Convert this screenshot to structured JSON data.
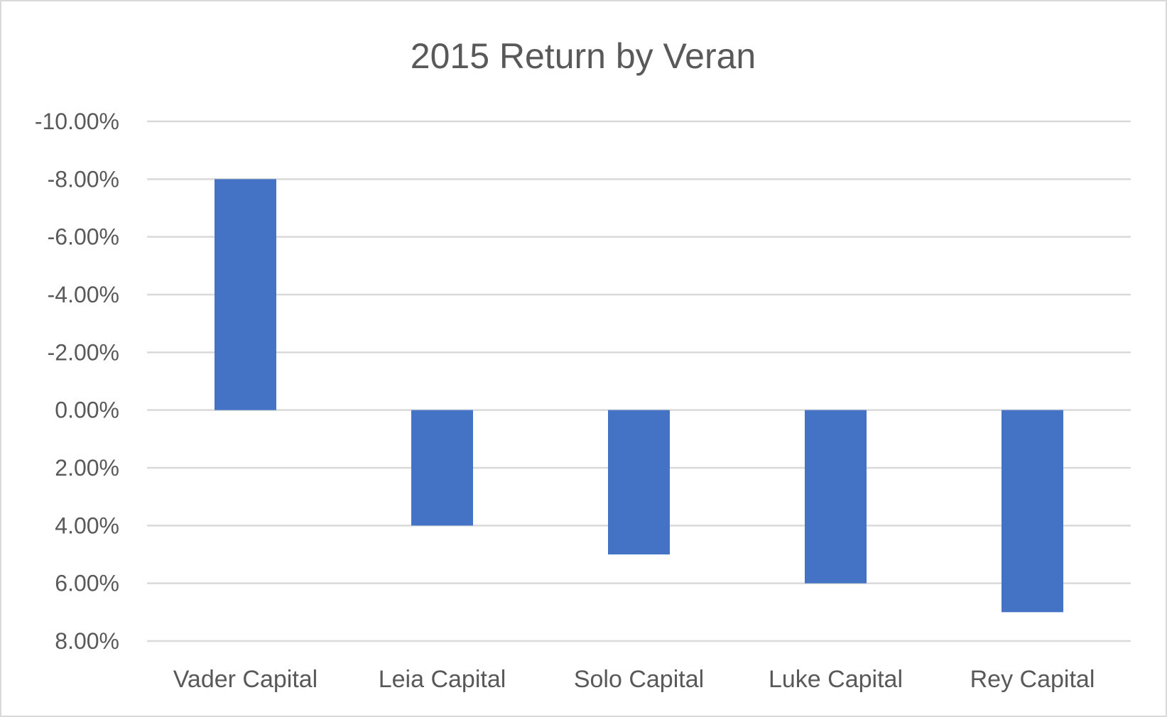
{
  "chart_data": {
    "type": "bar",
    "title": "2015 Return by Veran",
    "xlabel": "",
    "ylabel": "",
    "categories": [
      "Vader Capital",
      "Leia Capital",
      "Solo Capital",
      "Luke Capital",
      "Rey Capital"
    ],
    "series": [
      {
        "values": [
          -0.08,
          0.04,
          0.05,
          0.06,
          0.07
        ],
        "color": "#4472c4"
      }
    ],
    "ylim": [
      -0.1,
      0.08
    ],
    "y_axis_reversed": true,
    "y_ticks": [
      -0.1,
      -0.08,
      -0.06,
      -0.04,
      -0.02,
      0.0,
      0.02,
      0.04,
      0.06,
      0.08
    ],
    "y_tick_labels": [
      "-10.00%",
      "-8.00%",
      "-6.00%",
      "-4.00%",
      "-2.00%",
      "0.00%",
      "2.00%",
      "4.00%",
      "6.00%",
      "8.00%"
    ],
    "grid": true,
    "legend": "none"
  }
}
